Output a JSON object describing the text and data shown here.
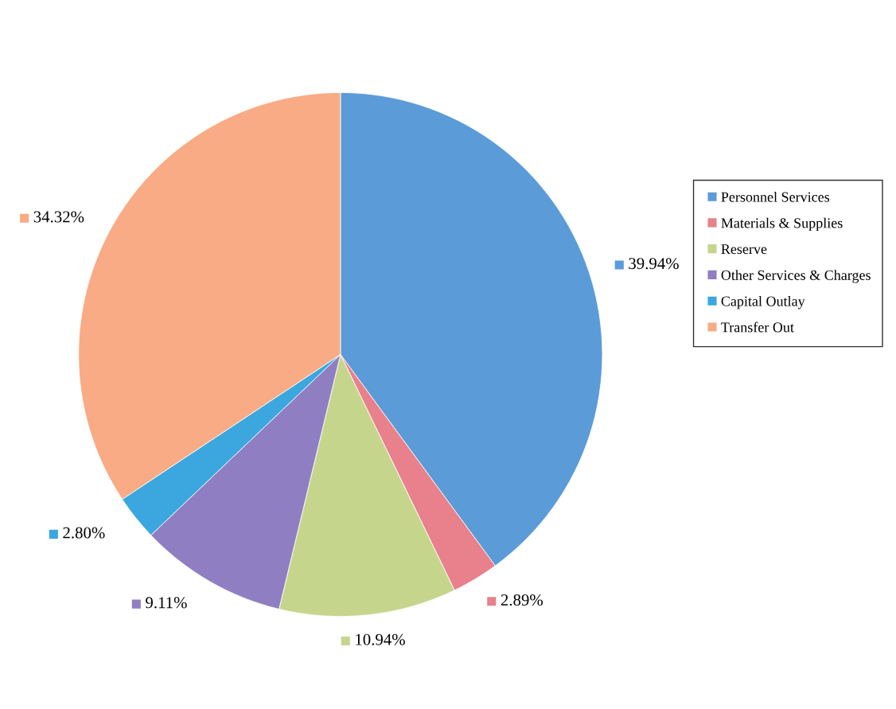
{
  "chart_data": {
    "type": "pie",
    "categories": [
      "Personnel Services",
      "Materials & Supplies",
      "Reserve",
      "Other Services & Charges",
      "Capital Outlay",
      "Transfer Out"
    ],
    "values": [
      39.94,
      2.89,
      10.94,
      9.11,
      2.8,
      34.32
    ],
    "colors": [
      "#5b9bd8",
      "#e8818c",
      "#c5d68c",
      "#8f7fc2",
      "#3ba7de",
      "#f8ab84"
    ],
    "value_labels": [
      "39.94%",
      "2.89%",
      "10.94%",
      "9.11%",
      "2.80%",
      "34.32%"
    ],
    "legend": "right"
  }
}
